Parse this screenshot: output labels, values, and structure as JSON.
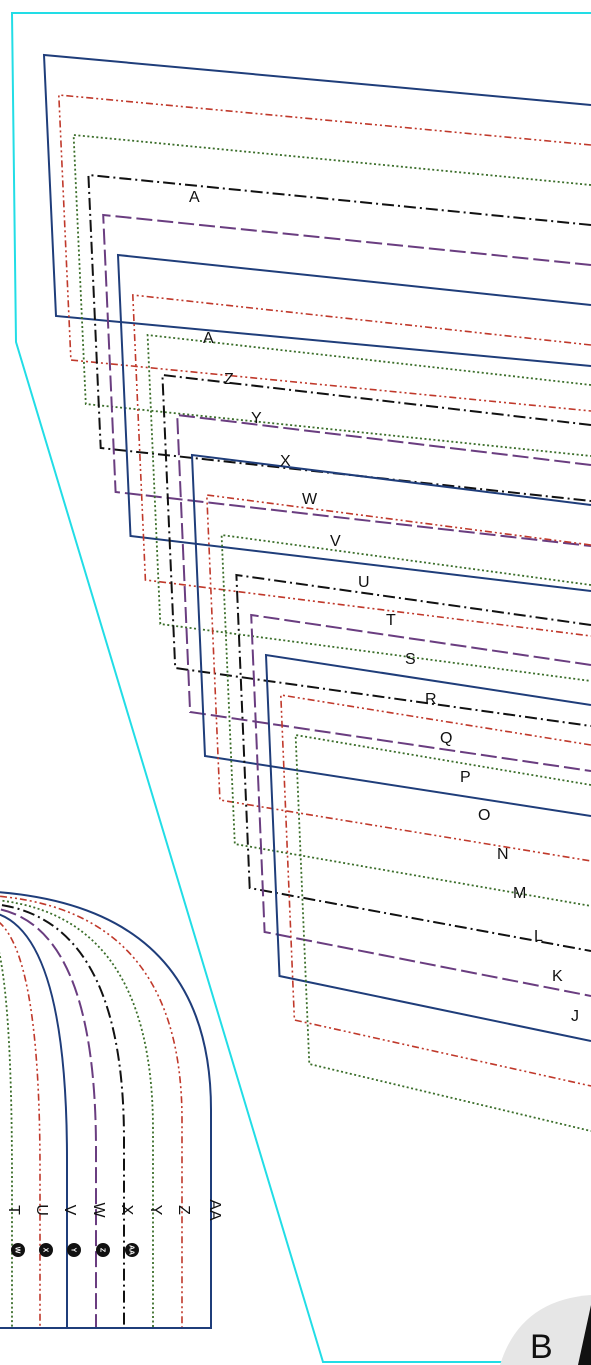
{
  "colors": {
    "outline": "#22dde6",
    "navy": "#1f3d7a",
    "red": "#c0392b",
    "green": "#3b6e2a",
    "black": "#111111",
    "purple": "#6a3d80",
    "corner_bg": "#e6e6e6"
  },
  "labels": {
    "top_marker": "A",
    "right_sizes": [
      "A",
      "Z",
      "Y",
      "X",
      "W",
      "V",
      "U",
      "T",
      "S",
      "R",
      "Q",
      "P",
      "O",
      "N",
      "M",
      "L",
      "K",
      "J"
    ],
    "arc_sizes": [
      "T",
      "U",
      "V",
      "W",
      "X",
      "Y",
      "Z",
      "AA"
    ],
    "badges": [
      "W",
      "X",
      "Y",
      "Z",
      "AA"
    ],
    "corner_piece": "B"
  }
}
